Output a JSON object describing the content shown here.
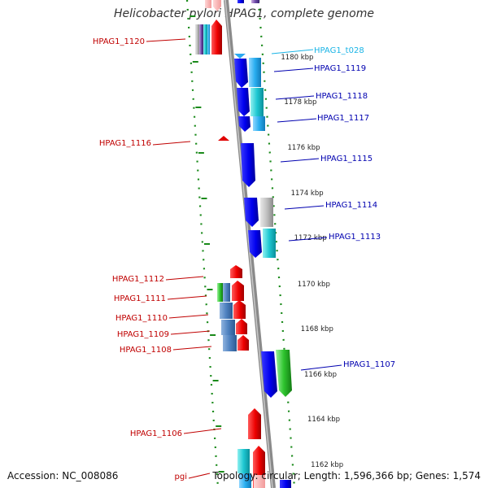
{
  "title": "Helicobacter pylori HPAG1, complete genome",
  "footer": {
    "accession": "Accession: NC_008086",
    "summary": "Topology: circular; Length: 1,596,366 bp; Genes: 1,574"
  },
  "colors": {
    "label_red": "#c00000",
    "label_blue": "#0000b0",
    "label_cyan": "#19b4e6",
    "ticks": "#1a8a1a",
    "backbone": "#888888"
  },
  "kbp_labels": [
    "1180 kbp",
    "1178 kbp",
    "1176 kbp",
    "1174 kbp",
    "1172 kbp",
    "1170 kbp",
    "1168 kbp",
    "1166 kbp",
    "1164 kbp",
    "1162 kbp"
  ],
  "gene_labels": [
    {
      "text": "HPAG1_1120",
      "color": "red"
    },
    {
      "text": "HPAG1_t028",
      "color": "cyan"
    },
    {
      "text": "HPAG1_1119",
      "color": "blue"
    },
    {
      "text": "HPAG1_1118",
      "color": "blue"
    },
    {
      "text": "HPAG1_1117",
      "color": "blue"
    },
    {
      "text": "HPAG1_1116",
      "color": "red"
    },
    {
      "text": "HPAG1_1115",
      "color": "blue"
    },
    {
      "text": "HPAG1_1114",
      "color": "blue"
    },
    {
      "text": "HPAG1_1113",
      "color": "blue"
    },
    {
      "text": "HPAG1_1112",
      "color": "red"
    },
    {
      "text": "HPAG1_1111",
      "color": "red"
    },
    {
      "text": "HPAG1_1110",
      "color": "red"
    },
    {
      "text": "HPAG1_1109",
      "color": "red"
    },
    {
      "text": "HPAG1_1108",
      "color": "red"
    },
    {
      "text": "HPAG1_1107",
      "color": "blue"
    },
    {
      "text": "HPAG1_1106",
      "color": "red"
    },
    {
      "text": "pgi",
      "color": "red"
    }
  ]
}
